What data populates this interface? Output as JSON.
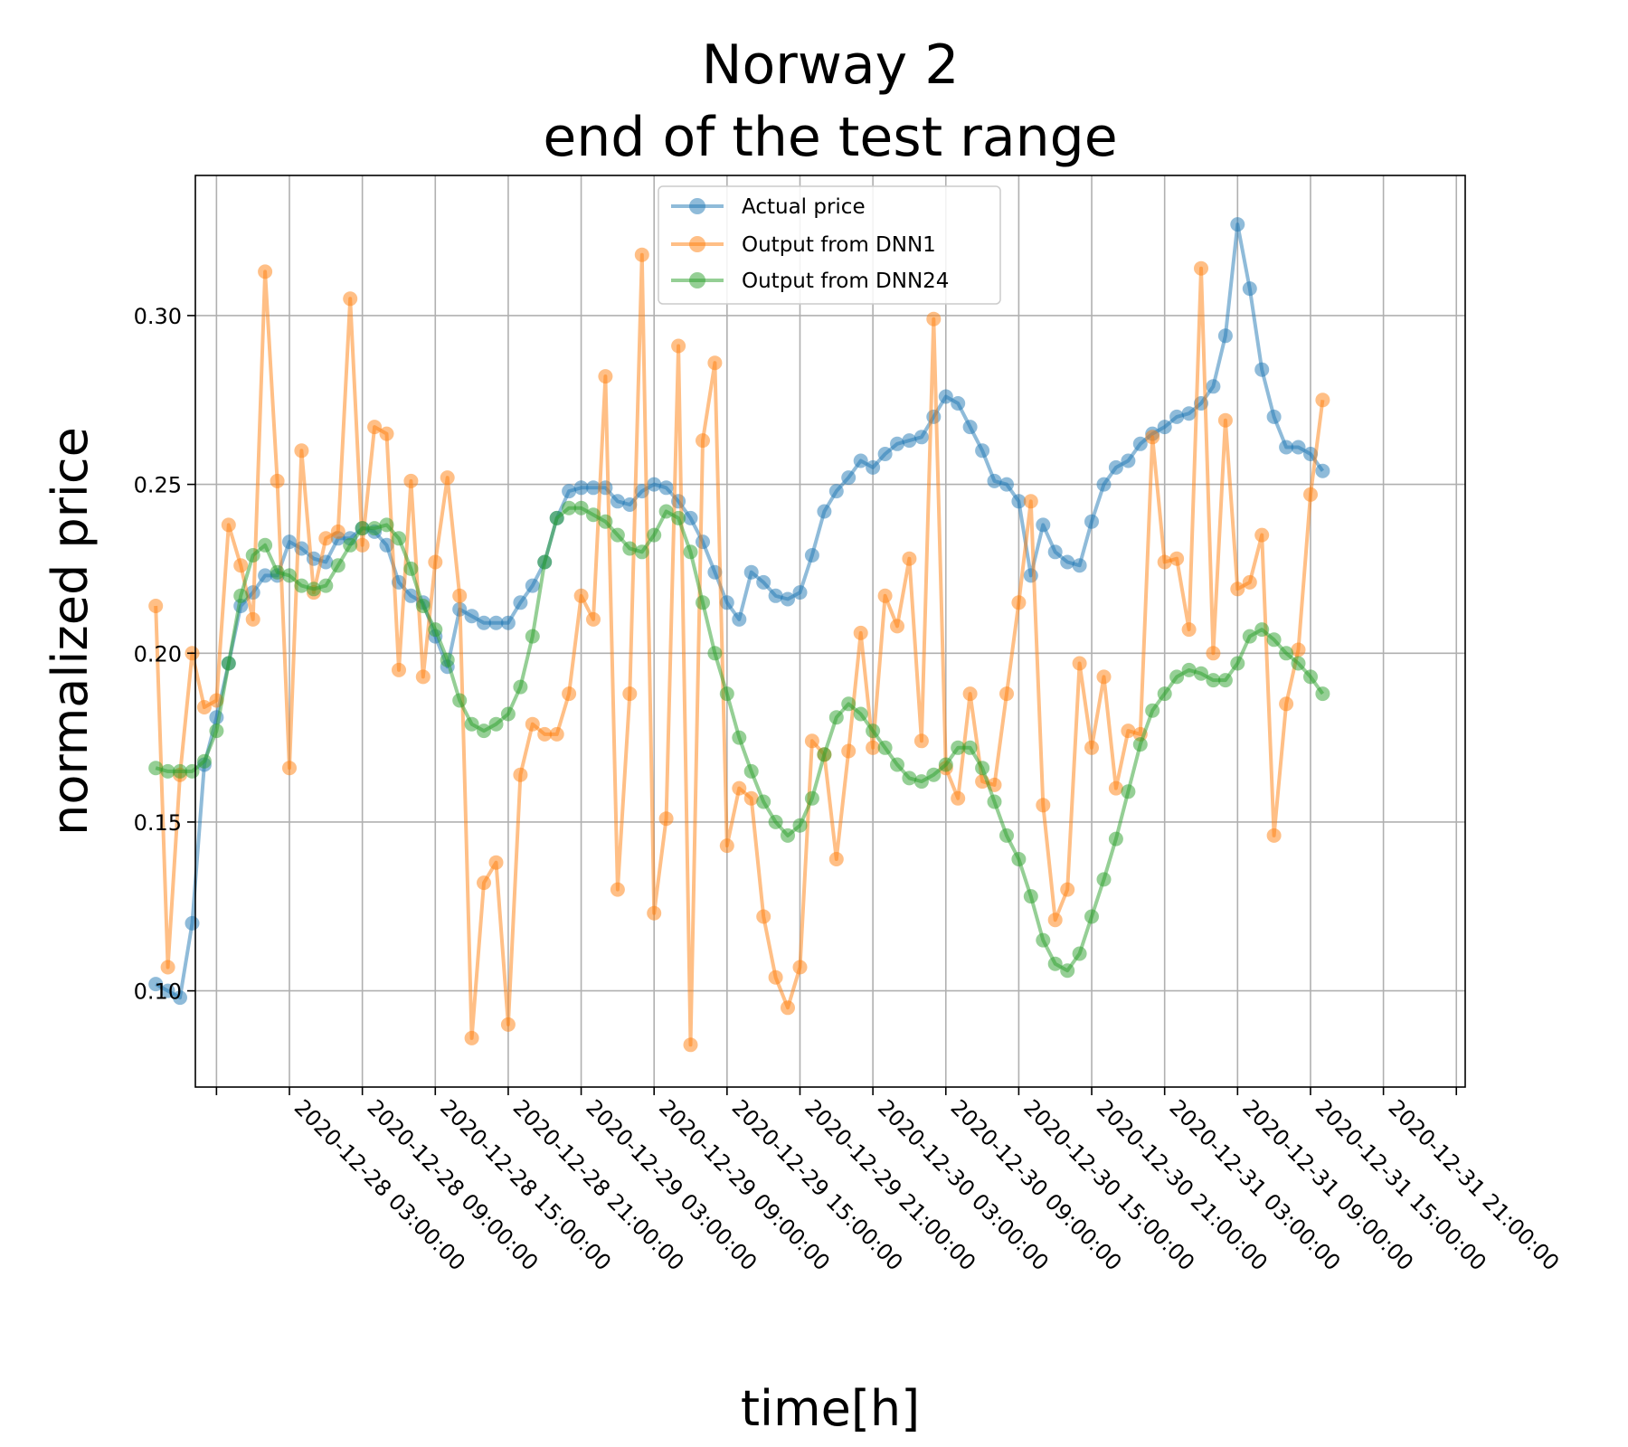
{
  "chart_data": {
    "type": "line",
    "title": [
      "Norway 2",
      "end of the test range"
    ],
    "xlabel": "time[h]",
    "ylabel": "normalized price",
    "ylim": [
      0.0715,
      0.3415
    ],
    "x_hours_offset_start": -11,
    "x_step_hours": 1,
    "x_ticks": [
      "2020-12-28 03:00:00",
      "2020-12-28 09:00:00",
      "2020-12-28 15:00:00",
      "2020-12-28 21:00:00",
      "2020-12-29 03:00:00",
      "2020-12-29 09:00:00",
      "2020-12-29 15:00:00",
      "2020-12-29 21:00:00",
      "2020-12-30 03:00:00",
      "2020-12-30 09:00:00",
      "2020-12-30 15:00:00",
      "2020-12-30 21:00:00",
      "2020-12-31 03:00:00",
      "2020-12-31 09:00:00",
      "2020-12-31 15:00:00",
      "2020-12-31 21:00:00"
    ],
    "y_ticks": [
      "0.10",
      "0.15",
      "0.20",
      "0.25",
      "0.30"
    ],
    "y_tick_values": [
      0.1,
      0.15,
      0.2,
      0.25,
      0.3
    ],
    "grid": true,
    "legend_position": "top-center",
    "series": [
      {
        "name": "Actual price",
        "color": "#1f77b4",
        "values": [
          0.102,
          0.1,
          0.098,
          0.12,
          0.167,
          0.181,
          0.197,
          0.214,
          0.218,
          0.223,
          0.223,
          0.233,
          0.231,
          0.228,
          0.227,
          0.234,
          0.234,
          0.237,
          0.236,
          0.232,
          0.221,
          0.217,
          0.215,
          0.205,
          0.196,
          0.213,
          0.211,
          0.209,
          0.209,
          0.209,
          0.215,
          0.22,
          0.227,
          0.24,
          0.248,
          0.249,
          0.249,
          0.249,
          0.245,
          0.244,
          0.248,
          0.25,
          0.249,
          0.245,
          0.24,
          0.233,
          0.224,
          0.215,
          0.21,
          0.224,
          0.221,
          0.217,
          0.216,
          0.218,
          0.229,
          0.242,
          0.248,
          0.252,
          0.257,
          0.255,
          0.259,
          0.262,
          0.263,
          0.264,
          0.27,
          0.276,
          0.274,
          0.267,
          0.26,
          0.251,
          0.25,
          0.245,
          0.223,
          0.238,
          0.23,
          0.227,
          0.226,
          0.239,
          0.25,
          0.255,
          0.257,
          0.262,
          0.265,
          0.267,
          0.27,
          0.271,
          0.274,
          0.279,
          0.294,
          0.327,
          0.308,
          0.284,
          0.27,
          0.261,
          0.261,
          0.259,
          0.254
        ]
      },
      {
        "name": "Output from DNN1",
        "color": "#ff7f0e",
        "values": [
          0.214,
          0.107,
          0.164,
          0.2,
          0.184,
          0.186,
          0.238,
          0.226,
          0.21,
          0.313,
          0.251,
          0.166,
          0.26,
          0.218,
          0.234,
          0.236,
          0.305,
          0.232,
          0.267,
          0.265,
          0.195,
          0.251,
          0.193,
          0.227,
          0.252,
          0.217,
          0.086,
          0.132,
          0.138,
          0.09,
          0.164,
          0.179,
          0.176,
          0.176,
          0.188,
          0.217,
          0.21,
          0.282,
          0.13,
          0.188,
          0.318,
          0.123,
          0.151,
          0.291,
          0.084,
          0.263,
          0.286,
          0.143,
          0.16,
          0.157,
          0.122,
          0.104,
          0.095,
          0.107,
          0.174,
          0.17,
          0.139,
          0.171,
          0.206,
          0.172,
          0.217,
          0.208,
          0.228,
          0.174,
          0.299,
          0.166,
          0.157,
          0.188,
          0.162,
          0.161,
          0.188,
          0.215,
          0.245,
          0.155,
          0.121,
          0.13,
          0.197,
          0.172,
          0.193,
          0.16,
          0.177,
          0.176,
          0.264,
          0.227,
          0.228,
          0.207,
          0.314,
          0.2,
          0.269,
          0.219,
          0.221,
          0.235,
          0.146,
          0.185,
          0.201,
          0.247,
          0.275
        ]
      },
      {
        "name": "Output from DNN24",
        "color": "#2ca02c",
        "values": [
          0.166,
          0.165,
          0.165,
          0.165,
          0.168,
          0.177,
          0.197,
          0.217,
          0.229,
          0.232,
          0.224,
          0.223,
          0.22,
          0.219,
          0.22,
          0.226,
          0.232,
          0.237,
          0.237,
          0.238,
          0.234,
          0.225,
          0.214,
          0.207,
          0.198,
          0.186,
          0.179,
          0.177,
          0.179,
          0.182,
          0.19,
          0.205,
          0.227,
          0.24,
          0.243,
          0.243,
          0.241,
          0.239,
          0.235,
          0.231,
          0.23,
          0.235,
          0.242,
          0.24,
          0.23,
          0.215,
          0.2,
          0.188,
          0.175,
          0.165,
          0.156,
          0.15,
          0.146,
          0.149,
          0.157,
          0.17,
          0.181,
          0.185,
          0.182,
          0.177,
          0.172,
          0.167,
          0.163,
          0.162,
          0.164,
          0.167,
          0.172,
          0.172,
          0.166,
          0.156,
          0.146,
          0.139,
          0.128,
          0.115,
          0.108,
          0.106,
          0.111,
          0.122,
          0.133,
          0.145,
          0.159,
          0.173,
          0.183,
          0.188,
          0.193,
          0.195,
          0.194,
          0.192,
          0.192,
          0.197,
          0.205,
          0.207,
          0.204,
          0.2,
          0.197,
          0.193,
          0.188
        ]
      }
    ]
  }
}
